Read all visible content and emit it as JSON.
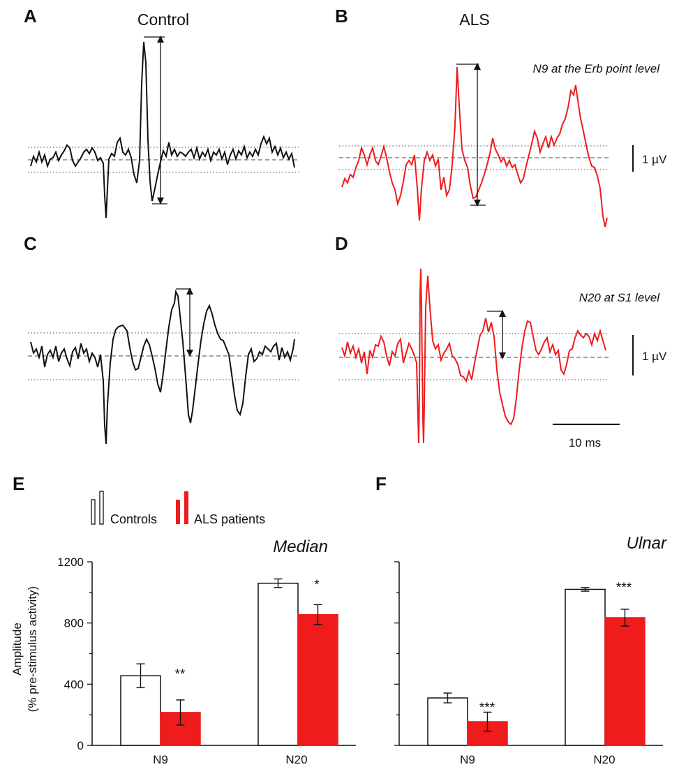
{
  "panels": {
    "A": {
      "letter": "A",
      "title": "Control"
    },
    "B": {
      "letter": "B",
      "title": "ALS",
      "annotation": "N9 at the Erb point level"
    },
    "C": {
      "letter": "C"
    },
    "D": {
      "letter": "D",
      "annotation": "N20 at S1 level"
    },
    "E": {
      "letter": "E"
    },
    "F": {
      "letter": "F"
    }
  },
  "scale_bars": {
    "amplitude_label": "1 µV",
    "time_label": "10 ms"
  },
  "colors": {
    "control": "#111111",
    "als": "#ee1c1c",
    "bar_control": "#ffffff",
    "bar_als": "#ee1c1c"
  },
  "legend": {
    "controls": "Controls",
    "als": "ALS patients"
  },
  "chart_data": [
    {
      "type": "bar",
      "panel": "E",
      "title": "Median",
      "ylabel": "Amplitude",
      "ylabel2": "(% pre-stimulus activity)",
      "ylim": [
        0,
        1200
      ],
      "yticks": [
        "0",
        "400",
        "800",
        "1200"
      ],
      "categories": [
        "N9",
        "N20"
      ],
      "series": [
        {
          "name": "Controls",
          "values": [
            455,
            1060
          ],
          "errors": [
            78,
            28
          ]
        },
        {
          "name": "ALS patients",
          "values": [
            215,
            855
          ],
          "errors": [
            82,
            65
          ]
        }
      ],
      "significance": [
        "**",
        "*"
      ]
    },
    {
      "type": "bar",
      "panel": "F",
      "title": "Ulnar",
      "ylim": [
        0,
        1200
      ],
      "categories": [
        "N9",
        "N20"
      ],
      "series": [
        {
          "name": "Controls",
          "values": [
            310,
            1020
          ],
          "errors": [
            32,
            12
          ]
        },
        {
          "name": "ALS patients",
          "values": [
            155,
            835
          ],
          "errors": [
            62,
            55
          ]
        }
      ],
      "significance": [
        "***",
        "***"
      ]
    }
  ]
}
